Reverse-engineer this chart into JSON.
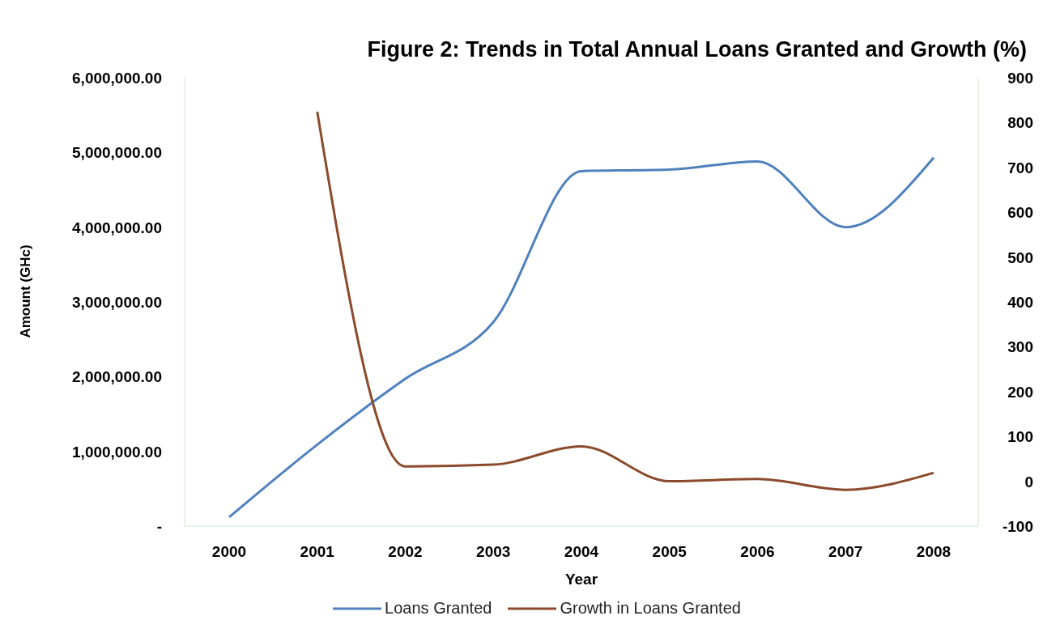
{
  "chart_data": {
    "type": "line",
    "title": "Figure 2: Trends in Total Annual Loans Granted and Growth (%)",
    "xlabel": "Year",
    "ylabel": "Amount (GHc)",
    "categories": [
      "2000",
      "2001",
      "2002",
      "2003",
      "2004",
      "2005",
      "2006",
      "2007",
      "2008"
    ],
    "series": [
      {
        "name": "Loans Granted",
        "color": "#4f81bd",
        "values": [
          120000,
          1090000,
          1970000,
          2730000,
          4750000,
          4770000,
          4880000,
          4000000,
          4930000
        ]
      },
      {
        "name": "Growth in Loans Granted",
        "color": "#8b4a2b",
        "axis": "y2",
        "values": [
          null,
          824,
          33,
          37,
          78,
          0,
          5,
          -19,
          19
        ]
      }
    ],
    "ylim": [
      0,
      6000000
    ],
    "yticks": [
      {
        "value": 0,
        "label": "-"
      },
      {
        "value": 1000000,
        "label": "1,000,000.00"
      },
      {
        "value": 2000000,
        "label": "2,000,000.00"
      },
      {
        "value": 3000000,
        "label": "3,000,000.00"
      },
      {
        "value": 4000000,
        "label": "4,000,000.00"
      },
      {
        "value": 5000000,
        "label": "5,000,000.00"
      },
      {
        "value": 6000000,
        "label": "6,000,000.00"
      }
    ],
    "y2lim": [
      -100,
      900
    ],
    "y2ticks": [
      -100,
      0,
      100,
      200,
      300,
      400,
      500,
      600,
      700,
      800,
      900
    ],
    "legend": "bottom",
    "marker": "none",
    "line_style": "solid"
  }
}
